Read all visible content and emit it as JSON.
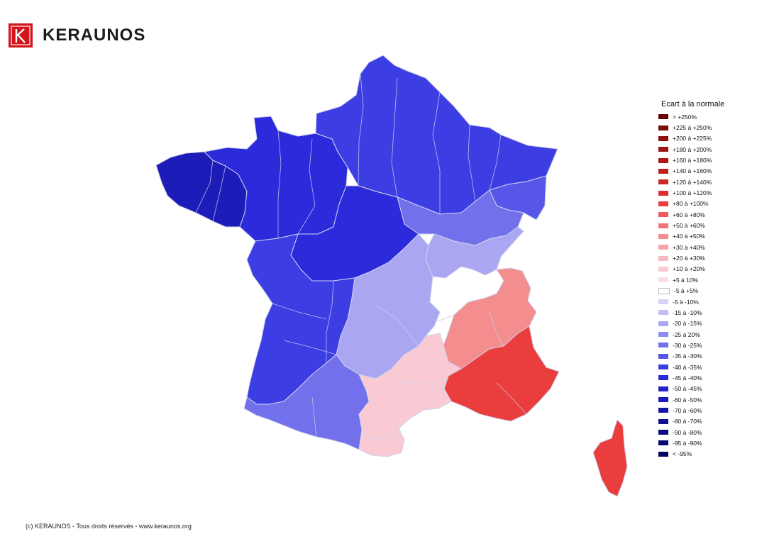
{
  "brand": {
    "name": "KERAUNOS",
    "mark": "K",
    "mark_color": "#d4141b"
  },
  "legend": {
    "title": "Ecart à la normale",
    "items": [
      {
        "label": "> +250%",
        "color": "#6b0000"
      },
      {
        "label": "+225 à +250%",
        "color": "#7d0a0a"
      },
      {
        "label": "+200 à +225%",
        "color": "#8c1010"
      },
      {
        "label": "+180 à +200%",
        "color": "#9c1414"
      },
      {
        "label": "+160 à +180%",
        "color": "#ad1818"
      },
      {
        "label": "+140 à +160%",
        "color": "#bd1e1e"
      },
      {
        "label": "+120 à +140%",
        "color": "#cf2525"
      },
      {
        "label": "+100 à +120%",
        "color": "#df2c2c"
      },
      {
        "label": "+80 à +100%",
        "color": "#ea3d3d"
      },
      {
        "label": "+60 à +80%",
        "color": "#f05a5a"
      },
      {
        "label": "+50 à +60%",
        "color": "#f27575"
      },
      {
        "label": "+40 à +50%",
        "color": "#f48d8d"
      },
      {
        "label": "+30 à +40%",
        "color": "#f6a4a7"
      },
      {
        "label": "+20 à +30%",
        "color": "#f8b8c1"
      },
      {
        "label": "+10 à +20%",
        "color": "#f9cad4"
      },
      {
        "label": "+5 à 10%",
        "color": "#fbdde6"
      },
      {
        "label": "-5 à +5%",
        "color": "#ffffff"
      },
      {
        "label": "-5 à -10%",
        "color": "#dcd0f8"
      },
      {
        "label": "-15 à -10%",
        "color": "#c6bcf5"
      },
      {
        "label": "-20 à -15%",
        "color": "#aaa6f2"
      },
      {
        "label": "-25 à 20%",
        "color": "#8e8cee"
      },
      {
        "label": "-30 à -25%",
        "color": "#7270ea"
      },
      {
        "label": "-35 à -30%",
        "color": "#5656e8"
      },
      {
        "label": "-40 à -35%",
        "color": "#3d3de4"
      },
      {
        "label": "-45 à -40%",
        "color": "#2b2bdc"
      },
      {
        "label": "-50 à -45%",
        "color": "#2222cc"
      },
      {
        "label": "-60 à -50%",
        "color": "#1c1cb8"
      },
      {
        "label": "-70 à -60%",
        "color": "#1616a4"
      },
      {
        "label": "-80 à -70%",
        "color": "#101090"
      },
      {
        "label": "-90 à -80%",
        "color": "#0b0b80"
      },
      {
        "label": "-95 à -90%",
        "color": "#060670"
      },
      {
        "label": "< -95%",
        "color": "#020260"
      }
    ]
  },
  "map": {
    "regions": [
      {
        "name": "Bretagne",
        "color": "#1c1cb8"
      },
      {
        "name": "Nord",
        "color": "#3d3de4"
      },
      {
        "name": "Normandie",
        "color": "#2b2bdc"
      },
      {
        "name": "Centre",
        "color": "#2b2bdc"
      },
      {
        "name": "Est",
        "color": "#3d3de4"
      },
      {
        "name": "Alsace",
        "color": "#5656e8"
      },
      {
        "name": "Franche-Comté",
        "color": "#7270ea"
      },
      {
        "name": "Savoie",
        "color": "#aaa6f2"
      },
      {
        "name": "Lyonnais",
        "color": "#ffffff"
      },
      {
        "name": "Alpes du Sud",
        "color": "#f48d8d"
      },
      {
        "name": "Provence",
        "color": "#ea3d3d"
      },
      {
        "name": "Languedoc",
        "color": "#f9cad4"
      },
      {
        "name": "Auvergne",
        "color": "#aaa6f2"
      },
      {
        "name": "Sud-Ouest",
        "color": "#3d3de4"
      },
      {
        "name": "Pyrénées",
        "color": "#7270ea"
      },
      {
        "name": "Pyrénées-Orientales",
        "color": "#f9cad4"
      },
      {
        "name": "Corse",
        "color": "#ea3d3d"
      }
    ]
  },
  "footer": {
    "text": "(c) KERAUNOS - Tous droits réservés - www.keraunos.org"
  }
}
